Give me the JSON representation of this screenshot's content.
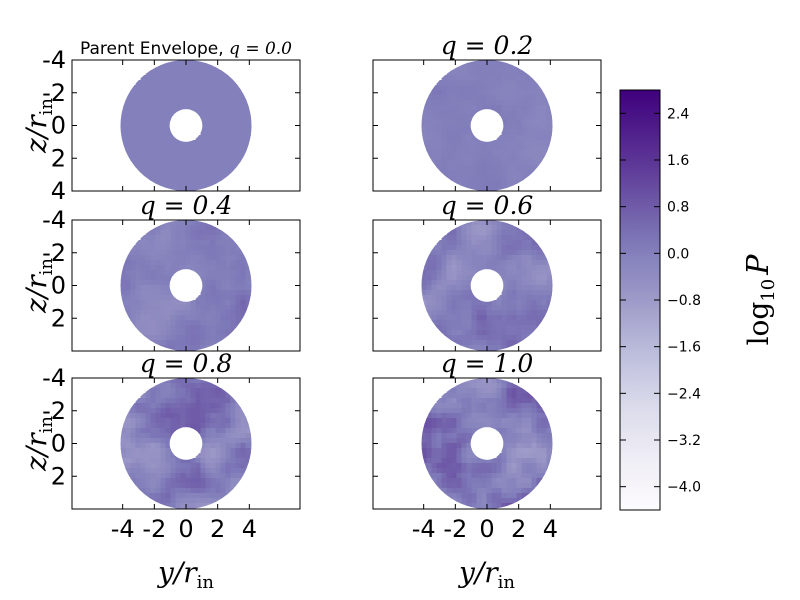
{
  "chart_data": {
    "type": "heatmap",
    "panels": [
      {
        "title_text": "Parent Envelope, ",
        "title_math": "q = 0.0",
        "q": 0.0,
        "mean_log10P": 0.0,
        "fluctuation": 0.0
      },
      {
        "title_text": "",
        "title_math": "q = 0.2",
        "q": 0.2,
        "mean_log10P": 0.0,
        "fluctuation": 0.2
      },
      {
        "title_text": "",
        "title_math": "q = 0.4",
        "q": 0.4,
        "mean_log10P": 0.0,
        "fluctuation": 0.4
      },
      {
        "title_text": "",
        "title_math": "q = 0.6",
        "q": 0.6,
        "mean_log10P": 0.0,
        "fluctuation": 0.6
      },
      {
        "title_text": "",
        "title_math": "q = 0.8",
        "q": 0.8,
        "mean_log10P": 0.0,
        "fluctuation": 0.8
      },
      {
        "title_text": "",
        "title_math": "q = 1.0",
        "q": 1.0,
        "mean_log10P": 0.0,
        "fluctuation": 1.0
      }
    ],
    "ring": {
      "inner_radius": 1,
      "outer_radius": 4
    },
    "xlabel": "y/r_in",
    "ylabel": "z/r_in",
    "x_ticks": [
      "-4",
      "-2",
      "0",
      "2",
      "4"
    ],
    "x_tick_values": [
      -4,
      -2,
      0,
      2,
      4
    ],
    "y_ticks": [
      "-4",
      "-2",
      "0",
      "2",
      "4"
    ],
    "y_tick_values": [
      -4,
      -2,
      0,
      2,
      4
    ],
    "y_ticks_lower": [
      "-4",
      "-2",
      "0",
      "2"
    ],
    "xlim": [
      -7.2,
      7.2
    ],
    "ylim": [
      -4,
      4
    ],
    "colorbar": {
      "label": "log10 P",
      "range": [
        -4.4,
        2.8
      ],
      "ticks": [
        "2.4",
        "1.6",
        "0.8",
        "0.0",
        "−0.8",
        "−1.6",
        "−2.4",
        "−3.2",
        "−4.0"
      ],
      "tick_values": [
        2.4,
        1.6,
        0.8,
        0.0,
        -0.8,
        -1.6,
        -2.4,
        -3.2,
        -4.0
      ],
      "colormap": "Purples",
      "color_low": "#fcfbfd",
      "color_high": "#3f007d"
    }
  }
}
